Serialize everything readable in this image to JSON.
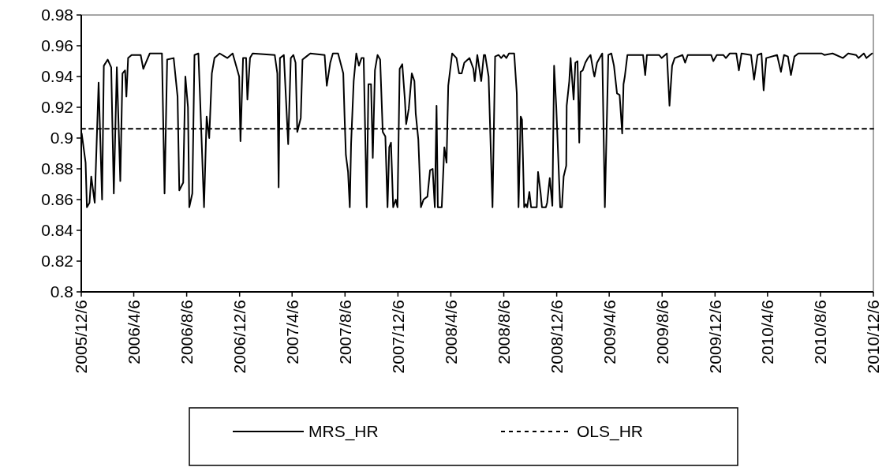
{
  "chart_data": {
    "type": "line",
    "legend": "bottom",
    "xlim": [
      "2005-12-06",
      "2010-12-06"
    ],
    "xticks": [
      {
        "value": "2005-12-06",
        "label": "2005/12/6"
      },
      {
        "value": "2006-04-06",
        "label": "2006/4/6"
      },
      {
        "value": "2006-08-06",
        "label": "2006/8/6"
      },
      {
        "value": "2006-12-06",
        "label": "2006/12/6"
      },
      {
        "value": "2007-04-06",
        "label": "2007/4/6"
      },
      {
        "value": "2007-08-06",
        "label": "2007/8/6"
      },
      {
        "value": "2007-12-06",
        "label": "2007/12/6"
      },
      {
        "value": "2008-04-06",
        "label": "2008/4/6"
      },
      {
        "value": "2008-08-06",
        "label": "2008/8/6"
      },
      {
        "value": "2008-12-06",
        "label": "2008/12/6"
      },
      {
        "value": "2009-04-06",
        "label": "2009/4/6"
      },
      {
        "value": "2009-08-06",
        "label": "2009/8/6"
      },
      {
        "value": "2009-12-06",
        "label": "2009/12/6"
      },
      {
        "value": "2010-04-06",
        "label": "2010/4/6"
      },
      {
        "value": "2010-08-06",
        "label": "2010/8/6"
      },
      {
        "value": "2010-12-06",
        "label": "2010/12/6"
      }
    ],
    "ylim": [
      0.8,
      0.98
    ],
    "yticks": [
      0.8,
      0.82,
      0.84,
      0.86,
      0.88,
      0.9,
      0.92,
      0.94,
      0.96,
      0.98
    ],
    "series": [
      {
        "name": "MRS_HR",
        "color": "#000000",
        "line_style": "solid",
        "x": [
          "2005-12-07",
          "2005-12-16",
          "2005-12-19",
          "2005-12-25",
          "2005-12-29",
          "2006-01-06",
          "2006-01-15",
          "2006-01-23",
          "2006-01-27",
          "2006-02-05",
          "2006-02-13",
          "2006-02-19",
          "2006-02-26",
          "2006-03-06",
          "2006-03-11",
          "2006-03-17",
          "2006-03-20",
          "2006-03-24",
          "2006-04-01",
          "2006-04-22",
          "2006-04-28",
          "2006-05-04",
          "2006-05-13",
          "2006-06-10",
          "2006-06-16",
          "2006-06-22",
          "2006-07-07",
          "2006-07-16",
          "2006-07-20",
          "2006-07-29",
          "2006-08-03",
          "2006-08-09",
          "2006-08-12",
          "2006-08-19",
          "2006-08-24",
          "2006-09-02",
          "2006-09-05",
          "2006-09-15",
          "2006-09-21",
          "2006-09-27",
          "2006-10-03",
          "2006-10-09",
          "2006-10-21",
          "2006-11-08",
          "2006-11-20",
          "2006-12-05",
          "2006-12-08",
          "2006-12-14",
          "2006-12-21",
          "2006-12-24",
          "2006-12-30",
          "2007-01-05",
          "2007-02-25",
          "2007-03-03",
          "2007-03-06",
          "2007-03-09",
          "2007-03-18",
          "2007-03-28",
          "2007-04-03",
          "2007-04-09",
          "2007-04-14",
          "2007-04-18",
          "2007-04-26",
          "2007-04-30",
          "2007-05-09",
          "2007-05-18",
          "2007-06-20",
          "2007-06-25",
          "2007-07-03",
          "2007-07-09",
          "2007-07-21",
          "2007-08-02",
          "2007-08-05",
          "2007-08-08",
          "2007-08-13",
          "2007-08-17",
          "2007-08-20",
          "2007-08-26",
          "2007-09-01",
          "2007-09-07",
          "2007-09-13",
          "2007-09-18",
          "2007-09-25",
          "2007-09-29",
          "2007-10-05",
          "2007-10-09",
          "2007-10-14",
          "2007-10-20",
          "2007-10-26",
          "2007-11-01",
          "2007-11-07",
          "2007-11-12",
          "2007-11-16",
          "2007-11-20",
          "2007-11-25",
          "2007-12-01",
          "2007-12-05",
          "2007-12-10",
          "2007-12-16",
          "2007-12-22",
          "2007-12-25",
          "2007-12-31",
          "2008-01-07",
          "2008-01-13",
          "2008-01-16",
          "2008-01-22",
          "2008-01-28",
          "2008-02-03",
          "2008-02-12",
          "2008-02-18",
          "2008-02-24",
          "2008-02-29",
          "2008-03-04",
          "2008-03-07",
          "2008-03-16",
          "2008-03-22",
          "2008-03-27",
          "2008-03-31",
          "2008-04-09",
          "2008-04-19",
          "2008-04-25",
          "2008-05-01",
          "2008-05-07",
          "2008-05-19",
          "2008-05-28",
          "2008-05-31",
          "2008-06-06",
          "2008-06-15",
          "2008-06-21",
          "2008-06-24",
          "2008-07-02",
          "2008-07-11",
          "2008-07-17",
          "2008-07-25",
          "2008-07-31",
          "2008-08-06",
          "2008-08-12",
          "2008-08-18",
          "2008-08-30",
          "2008-09-05",
          "2008-09-09",
          "2008-09-14",
          "2008-09-17",
          "2008-09-22",
          "2008-09-26",
          "2008-09-29",
          "2008-10-04",
          "2008-10-08",
          "2008-10-21",
          "2008-10-24",
          "2008-10-30",
          "2008-11-02",
          "2008-11-11",
          "2008-11-14",
          "2008-11-20",
          "2008-11-26",
          "2008-11-30",
          "2008-12-05",
          "2008-12-14",
          "2008-12-18",
          "2008-12-22",
          "2008-12-28",
          "2008-12-29",
          "2009-01-04",
          "2009-01-07",
          "2009-01-14",
          "2009-01-18",
          "2009-01-23",
          "2009-01-27",
          "2009-01-30",
          "2009-02-04",
          "2009-02-10",
          "2009-02-16",
          "2009-02-22",
          "2009-02-28",
          "2009-03-03",
          "2009-03-09",
          "2009-03-15",
          "2009-03-21",
          "2009-03-27",
          "2009-04-04",
          "2009-04-11",
          "2009-04-17",
          "2009-04-24",
          "2009-04-30",
          "2009-05-06",
          "2009-05-09",
          "2009-05-12",
          "2009-05-18",
          "2009-06-23",
          "2009-06-28",
          "2009-07-02",
          "2009-07-30",
          "2009-08-05",
          "2009-08-17",
          "2009-08-23",
          "2009-08-29",
          "2009-09-04",
          "2009-09-22",
          "2009-09-28",
          "2009-10-04",
          "2009-10-10",
          "2009-11-27",
          "2009-12-02",
          "2009-12-10",
          "2009-12-25",
          "2009-12-31",
          "2010-01-09",
          "2010-01-24",
          "2010-01-30",
          "2010-02-05",
          "2010-02-27",
          "2010-03-06",
          "2010-03-14",
          "2010-03-23",
          "2010-03-28",
          "2010-04-03",
          "2010-04-28",
          "2010-05-07",
          "2010-05-14",
          "2010-05-23",
          "2010-05-30",
          "2010-06-07",
          "2010-06-16",
          "2010-08-09",
          "2010-08-15",
          "2010-09-03",
          "2010-09-27",
          "2010-10-09",
          "2010-10-27",
          "2010-11-02",
          "2010-11-14",
          "2010-11-20",
          "2010-12-03"
        ],
        "values": [
          0.903,
          0.884,
          0.855,
          0.858,
          0.875,
          0.858,
          0.936,
          0.86,
          0.947,
          0.951,
          0.946,
          0.864,
          0.946,
          0.872,
          0.942,
          0.944,
          0.927,
          0.952,
          0.954,
          0.954,
          0.945,
          0.949,
          0.955,
          0.955,
          0.864,
          0.951,
          0.952,
          0.927,
          0.866,
          0.871,
          0.94,
          0.92,
          0.855,
          0.864,
          0.954,
          0.955,
          0.933,
          0.855,
          0.914,
          0.9,
          0.942,
          0.952,
          0.955,
          0.952,
          0.955,
          0.94,
          0.898,
          0.952,
          0.952,
          0.925,
          0.952,
          0.955,
          0.954,
          0.942,
          0.868,
          0.952,
          0.954,
          0.896,
          0.952,
          0.954,
          0.949,
          0.904,
          0.913,
          0.951,
          0.953,
          0.955,
          0.954,
          0.934,
          0.949,
          0.955,
          0.955,
          0.942,
          0.914,
          0.889,
          0.878,
          0.855,
          0.896,
          0.937,
          0.955,
          0.947,
          0.952,
          0.952,
          0.855,
          0.935,
          0.935,
          0.887,
          0.944,
          0.954,
          0.951,
          0.904,
          0.901,
          0.855,
          0.894,
          0.897,
          0.855,
          0.86,
          0.855,
          0.945,
          0.948,
          0.925,
          0.909,
          0.919,
          0.942,
          0.937,
          0.916,
          0.899,
          0.855,
          0.86,
          0.862,
          0.879,
          0.88,
          0.855,
          0.921,
          0.855,
          0.855,
          0.894,
          0.884,
          0.934,
          0.955,
          0.952,
          0.942,
          0.942,
          0.949,
          0.952,
          0.945,
          0.937,
          0.954,
          0.937,
          0.954,
          0.954,
          0.94,
          0.855,
          0.953,
          0.954,
          0.952,
          0.954,
          0.952,
          0.955,
          0.955,
          0.929,
          0.855,
          0.914,
          0.912,
          0.855,
          0.857,
          0.855,
          0.865,
          0.855,
          0.855,
          0.878,
          0.864,
          0.855,
          0.855,
          0.858,
          0.874,
          0.856,
          0.947,
          0.92,
          0.855,
          0.855,
          0.875,
          0.882,
          0.921,
          0.937,
          0.952,
          0.925,
          0.949,
          0.95,
          0.897,
          0.943,
          0.944,
          0.949,
          0.952,
          0.954,
          0.944,
          0.94,
          0.949,
          0.952,
          0.955,
          0.855,
          0.954,
          0.955,
          0.947,
          0.929,
          0.928,
          0.903,
          0.935,
          0.94,
          0.954,
          0.954,
          0.941,
          0.954,
          0.954,
          0.952,
          0.955,
          0.921,
          0.947,
          0.952,
          0.954,
          0.949,
          0.954,
          0.954,
          0.954,
          0.95,
          0.954,
          0.954,
          0.952,
          0.955,
          0.955,
          0.944,
          0.955,
          0.954,
          0.938,
          0.954,
          0.955,
          0.931,
          0.952,
          0.954,
          0.943,
          0.954,
          0.953,
          0.941,
          0.953,
          0.955,
          0.955,
          0.954,
          0.955,
          0.952,
          0.955,
          0.954,
          0.952,
          0.955,
          0.952,
          0.955
        ]
      },
      {
        "name": "OLS_HR",
        "color": "#000000",
        "line_style": "dotted",
        "x": [
          "2005-12-06",
          "2010-12-06"
        ],
        "values": [
          0.906,
          0.906
        ]
      }
    ]
  }
}
